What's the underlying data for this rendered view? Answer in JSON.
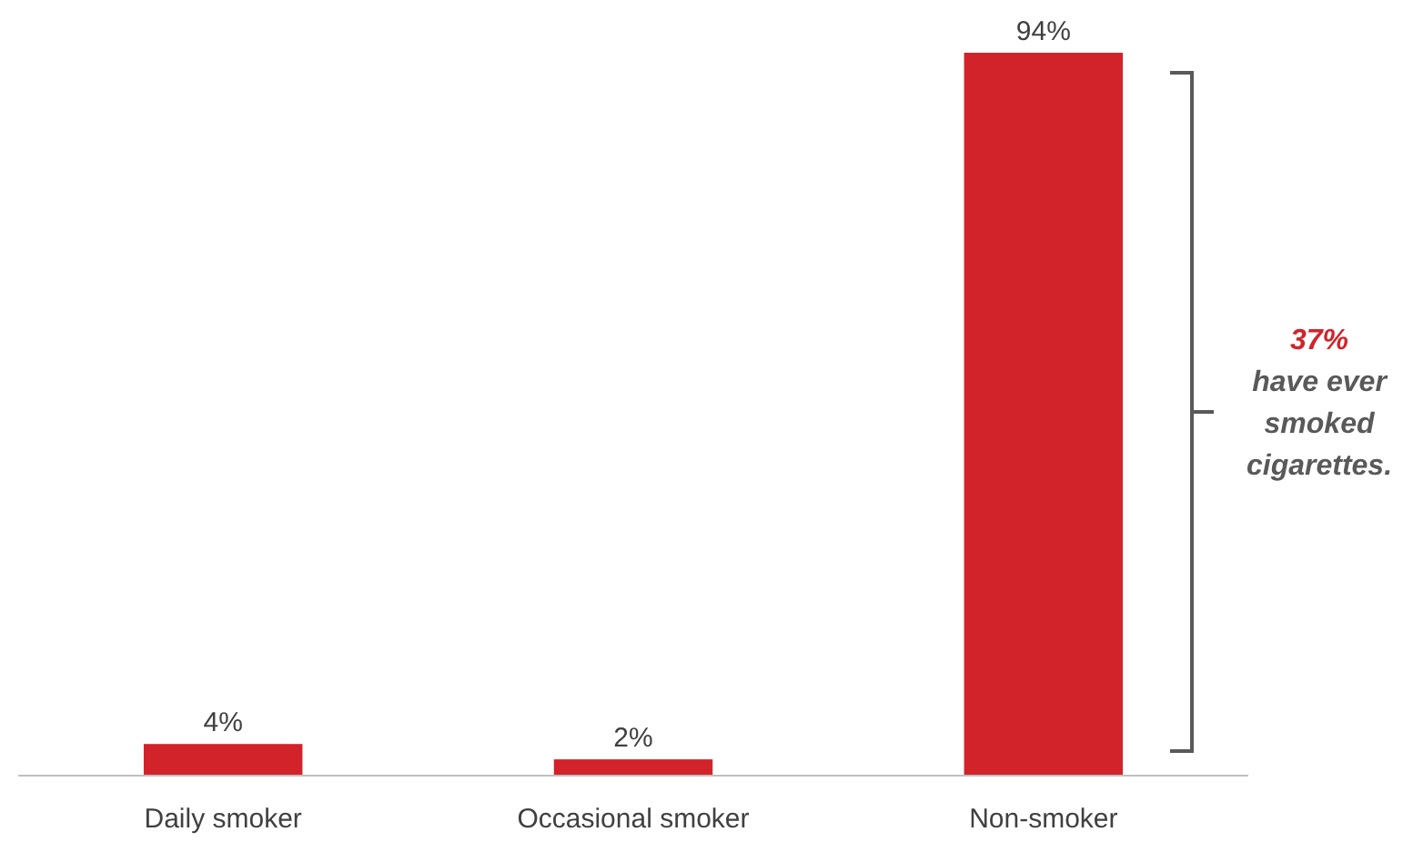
{
  "chart_data": {
    "type": "bar",
    "categories": [
      "Daily smoker",
      "Occasional smoker",
      "Non-smoker"
    ],
    "values": [
      4,
      2,
      94
    ],
    "color": "#d2232a",
    "value_labels": [
      "4%",
      "2%",
      "94%"
    ],
    "annotations": [
      "37%",
      "have ever smoked cigarettes."
    ]
  }
}
